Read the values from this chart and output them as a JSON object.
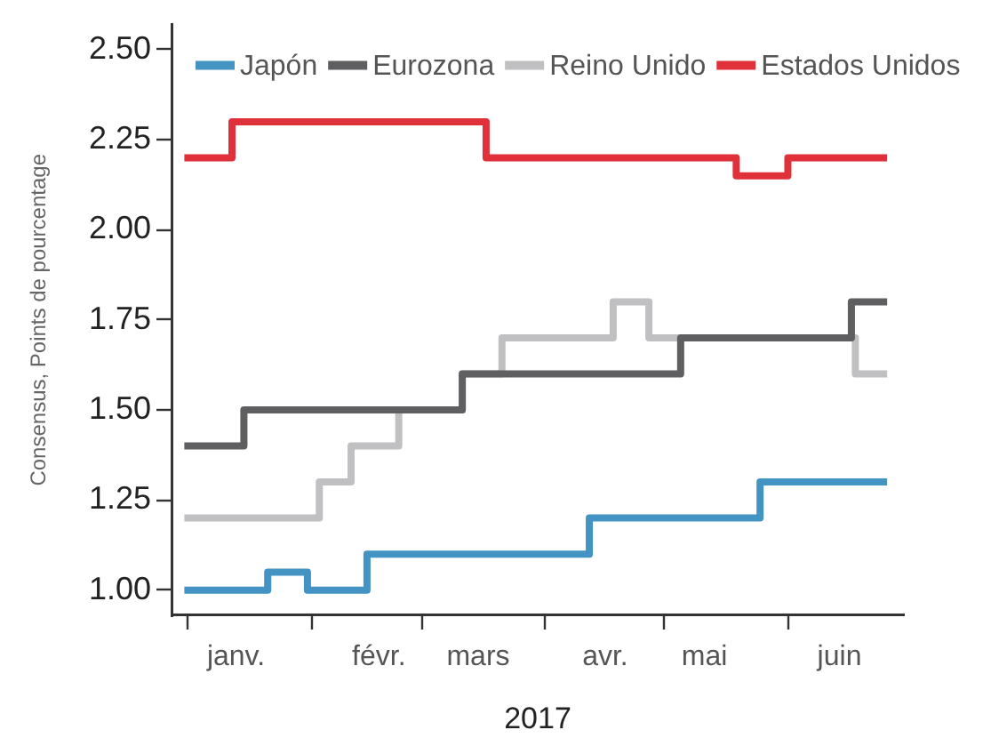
{
  "chart_data": {
    "type": "step",
    "ylabel": "Consensus, Points de pourcentage",
    "xlabel": "2017",
    "series": [
      {
        "name": "Japón",
        "color": "#4393c3",
        "x": [
          "2016-12-31",
          "2017-01-21",
          "2017-01-31",
          "2017-02-15",
          "2017-04-12",
          "2017-05-25",
          "2017-06-26"
        ],
        "values": [
          1.0,
          1.05,
          1.0,
          1.1,
          1.2,
          1.3,
          1.3
        ]
      },
      {
        "name": "Eurozona",
        "color": "#5f5f61",
        "x": [
          "2016-12-31",
          "2017-01-15",
          "2017-03-11",
          "2017-05-05",
          "2017-06-17",
          "2017-06-26"
        ],
        "values": [
          1.4,
          1.5,
          1.6,
          1.7,
          1.8,
          1.8
        ]
      },
      {
        "name": "Reino Unido",
        "color": "#c0c0c2",
        "x": [
          "2016-12-31",
          "2017-02-03",
          "2017-02-11",
          "2017-02-23",
          "2017-03-11",
          "2017-03-21",
          "2017-04-18",
          "2017-04-27",
          "2017-06-18",
          "2017-06-26"
        ],
        "values": [
          1.2,
          1.3,
          1.4,
          1.5,
          1.6,
          1.7,
          1.8,
          1.7,
          1.6,
          1.6
        ]
      },
      {
        "name": "Estados Unidos",
        "color": "#e0313b",
        "x": [
          "2016-12-31",
          "2017-01-12",
          "2017-03-17",
          "2017-05-19",
          "2017-06-01",
          "2017-06-26"
        ],
        "values": [
          2.2,
          2.3,
          2.2,
          2.15,
          2.2,
          2.2
        ]
      }
    ],
    "xlim": [
      "2016-12-28",
      "2017-06-30"
    ],
    "xticks": [
      {
        "value": "2017-01-01",
        "label": null
      },
      {
        "value": "2017-01-13",
        "label": "janv."
      },
      {
        "value": "2017-02-01",
        "label": null
      },
      {
        "value": "2017-02-18",
        "label": "févr."
      },
      {
        "value": "2017-03-01",
        "label": null
      },
      {
        "value": "2017-03-15",
        "label": "mars"
      },
      {
        "value": "2017-04-01",
        "label": null
      },
      {
        "value": "2017-04-16",
        "label": "avr."
      },
      {
        "value": "2017-05-01",
        "label": null
      },
      {
        "value": "2017-05-11",
        "label": "mai"
      },
      {
        "value": "2017-06-01",
        "label": null
      },
      {
        "value": "2017-06-14",
        "label": "juin"
      }
    ],
    "ylim": [
      0.93,
      2.57
    ],
    "yticks": [
      {
        "value": 1.0,
        "label": "1.00"
      },
      {
        "value": 1.25,
        "label": "1.25"
      },
      {
        "value": 1.5,
        "label": "1.50"
      },
      {
        "value": 1.75,
        "label": "1.75"
      },
      {
        "value": 2.0,
        "label": "2.00"
      },
      {
        "value": 2.25,
        "label": "2.25"
      },
      {
        "value": 2.5,
        "label": "2.50"
      }
    ],
    "grid": false,
    "legend": "top"
  }
}
